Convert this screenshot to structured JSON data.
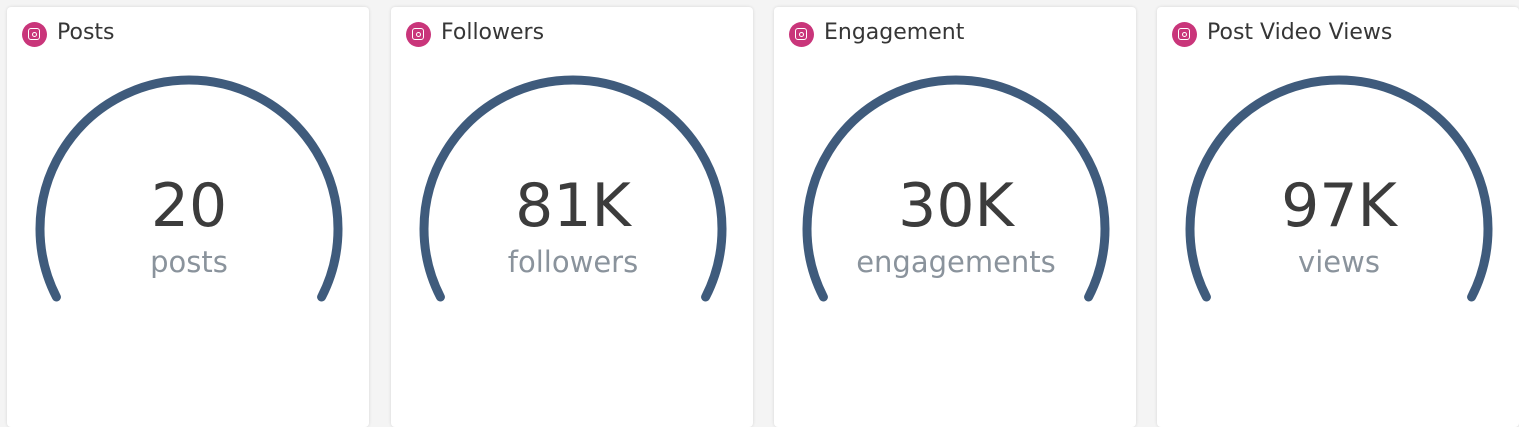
{
  "cards": [
    {
      "title": "Posts",
      "value": "20",
      "unit": "posts"
    },
    {
      "title": "Followers",
      "value": "81K",
      "unit": "followers"
    },
    {
      "title": "Engagement",
      "value": "30K",
      "unit": "engagements"
    },
    {
      "title": "Post Video Views",
      "value": "97K",
      "unit": "views"
    }
  ]
}
